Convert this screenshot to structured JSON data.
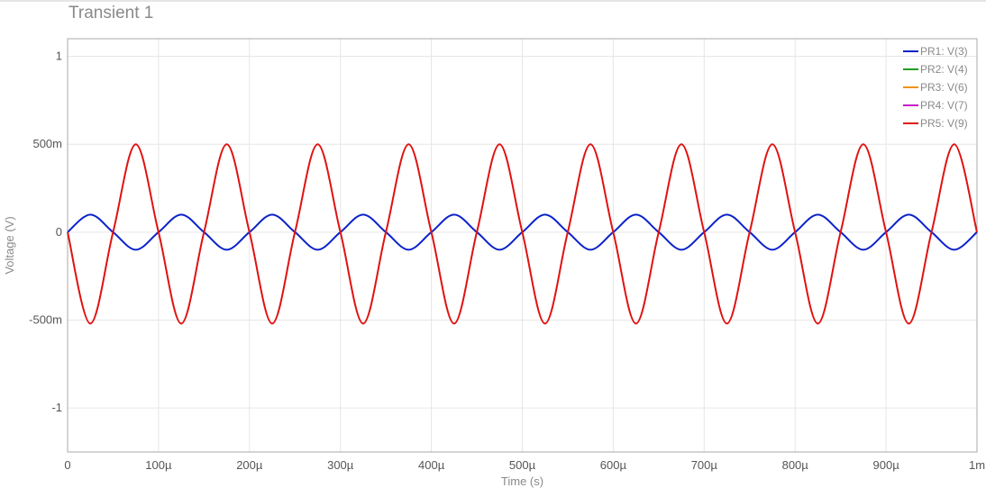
{
  "chart_data": {
    "type": "line",
    "title": "Transient 1",
    "xlabel": "Time (s)",
    "ylabel": "Voltage (V)",
    "xlim": [
      0,
      0.001
    ],
    "ylim": [
      -1.25,
      1.1
    ],
    "x_ticks": [
      {
        "value": 0,
        "label": "0"
      },
      {
        "value": 0.0001,
        "label": "100µ"
      },
      {
        "value": 0.0002,
        "label": "200µ"
      },
      {
        "value": 0.0003,
        "label": "300µ"
      },
      {
        "value": 0.0004,
        "label": "400µ"
      },
      {
        "value": 0.0005,
        "label": "500µ"
      },
      {
        "value": 0.0006,
        "label": "600µ"
      },
      {
        "value": 0.0007,
        "label": "700µ"
      },
      {
        "value": 0.0008,
        "label": "800µ"
      },
      {
        "value": 0.0009,
        "label": "900µ"
      },
      {
        "value": 0.001,
        "label": "1m"
      }
    ],
    "y_ticks": [
      {
        "value": 1,
        "label": "1"
      },
      {
        "value": 0.5,
        "label": "500m"
      },
      {
        "value": 0,
        "label": "0"
      },
      {
        "value": -0.5,
        "label": "-500m"
      },
      {
        "value": -1,
        "label": "-1"
      }
    ],
    "grid": true,
    "legend_position": "top-right",
    "series": [
      {
        "name": "PR1: V(3)",
        "color": "#0b22c9",
        "visible": true,
        "x": [
          0,
          2.5e-05,
          5e-05,
          7.5e-05,
          0.0001,
          0.000125,
          0.00015,
          0.000175,
          0.0002,
          0.000225,
          0.00025,
          0.000275,
          0.0003,
          0.000325,
          0.00035,
          0.000375,
          0.0004,
          0.000425,
          0.00045,
          0.000475,
          0.0005,
          0.000525,
          0.00055,
          0.000575,
          0.0006,
          0.000625,
          0.00065,
          0.000675,
          0.0007,
          0.000725,
          0.00075,
          0.000775,
          0.0008,
          0.000825,
          0.00085,
          0.000875,
          0.0009,
          0.000925,
          0.00095,
          0.000975,
          0.001
        ],
        "y": [
          0,
          0.1,
          0,
          -0.1,
          0,
          0.1,
          0,
          -0.1,
          0,
          0.1,
          0,
          -0.1,
          0,
          0.1,
          0,
          -0.1,
          0,
          0.1,
          0,
          -0.1,
          0,
          0.1,
          0,
          -0.1,
          0,
          0.1,
          0,
          -0.1,
          0,
          0.1,
          0,
          -0.1,
          0,
          0.1,
          0,
          -0.1,
          0,
          0.1,
          0,
          -0.1,
          0
        ]
      },
      {
        "name": "PR2: V(4)",
        "color": "#1fa01f",
        "visible": false,
        "x": [],
        "y": []
      },
      {
        "name": "PR3: V(6)",
        "color": "#f0930f",
        "visible": false,
        "x": [],
        "y": []
      },
      {
        "name": "PR4: V(7)",
        "color": "#c719c7",
        "visible": false,
        "x": [],
        "y": []
      },
      {
        "name": "PR5: V(9)",
        "color": "#e01212",
        "visible": true,
        "x": [
          0,
          2.5e-05,
          5e-05,
          7.5e-05,
          0.0001,
          0.000125,
          0.00015,
          0.000175,
          0.0002,
          0.000225,
          0.00025,
          0.000275,
          0.0003,
          0.000325,
          0.00035,
          0.000375,
          0.0004,
          0.000425,
          0.00045,
          0.000475,
          0.0005,
          0.000525,
          0.00055,
          0.000575,
          0.0006,
          0.000625,
          0.00065,
          0.000675,
          0.0007,
          0.000725,
          0.00075,
          0.000775,
          0.0008,
          0.000825,
          0.00085,
          0.000875,
          0.0009,
          0.000925,
          0.00095,
          0.000975,
          0.001
        ],
        "y": [
          0,
          -0.52,
          0,
          0.5,
          0,
          -0.52,
          0,
          0.5,
          0,
          -0.52,
          0,
          0.5,
          0,
          -0.52,
          0,
          0.5,
          0,
          -0.52,
          0,
          0.5,
          0,
          -0.52,
          0,
          0.5,
          0,
          -0.52,
          0,
          0.5,
          0,
          -0.52,
          0,
          0.5,
          0,
          -0.52,
          0,
          0.5,
          0,
          -0.52,
          0,
          0.5,
          0
        ]
      }
    ]
  }
}
